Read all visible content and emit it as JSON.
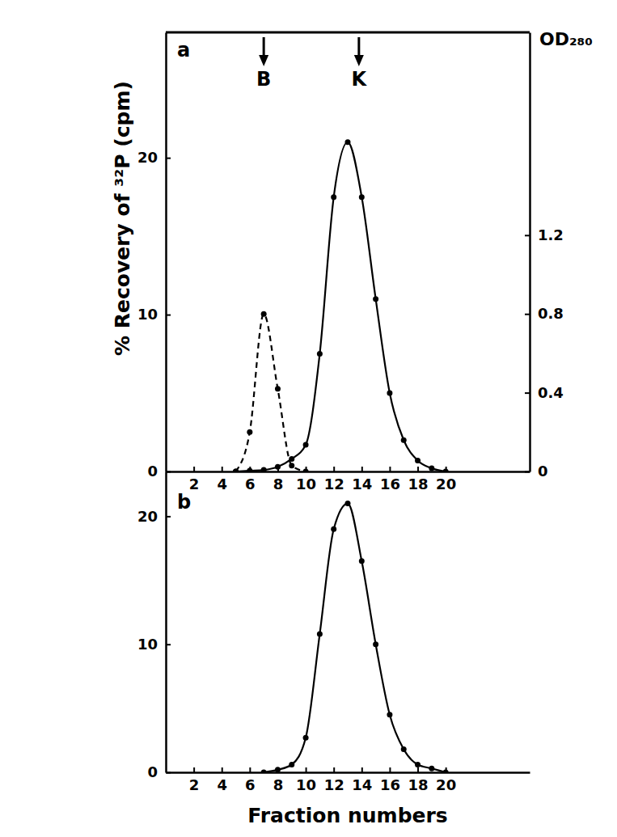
{
  "chart_data": [
    {
      "type": "line",
      "panel": "a",
      "y_label": "% Recovery of ³²P (cpm)",
      "y2_label": "OD₂₈₀",
      "xlim": [
        0,
        26
      ],
      "xticks": [
        2,
        4,
        6,
        8,
        10,
        12,
        14,
        16,
        18,
        20
      ],
      "ylim": [
        0,
        28
      ],
      "yticks": [
        0,
        10,
        20
      ],
      "y2lim": [
        0,
        2.23
      ],
      "y2ticks": [
        0,
        0.4,
        0.8,
        1.2
      ],
      "annotations": [
        {
          "text": "B",
          "x": 7
        },
        {
          "text": "K",
          "x": 13.8
        }
      ],
      "series": [
        {
          "color": "#000000",
          "line_style": "solid",
          "marker": "circle",
          "x": [
            5,
            6,
            7,
            8,
            9,
            10,
            11,
            12,
            13,
            14,
            15,
            16,
            17,
            18,
            19,
            20
          ],
          "values": [
            0,
            0.05,
            0.1,
            0.3,
            0.8,
            1.7,
            7.5,
            17.5,
            21,
            17.5,
            11,
            5,
            2,
            0.7,
            0.2,
            0
          ]
        },
        {
          "color": "#000000",
          "line_style": "dashed",
          "marker": "circle",
          "axis": "y2",
          "x": [
            5,
            6,
            7,
            8,
            9,
            10
          ],
          "values": [
            0,
            0.2,
            0.8,
            0.42,
            0.03,
            0
          ]
        }
      ]
    },
    {
      "type": "line",
      "panel": "b",
      "x_label": "Fraction numbers",
      "xlim": [
        0,
        26
      ],
      "xticks": [
        2,
        4,
        6,
        8,
        10,
        12,
        14,
        16,
        18,
        20
      ],
      "ylim": [
        0,
        23.5
      ],
      "yticks": [
        0,
        10,
        20
      ],
      "series": [
        {
          "color": "#000000",
          "line_style": "solid",
          "marker": "circle",
          "x": [
            7,
            8,
            9,
            10,
            11,
            12,
            13,
            14,
            15,
            16,
            17,
            18,
            19,
            20
          ],
          "values": [
            0,
            0.2,
            0.6,
            2.7,
            10.8,
            19,
            21,
            16.5,
            10,
            4.5,
            1.8,
            0.6,
            0.3,
            0
          ]
        }
      ]
    }
  ]
}
